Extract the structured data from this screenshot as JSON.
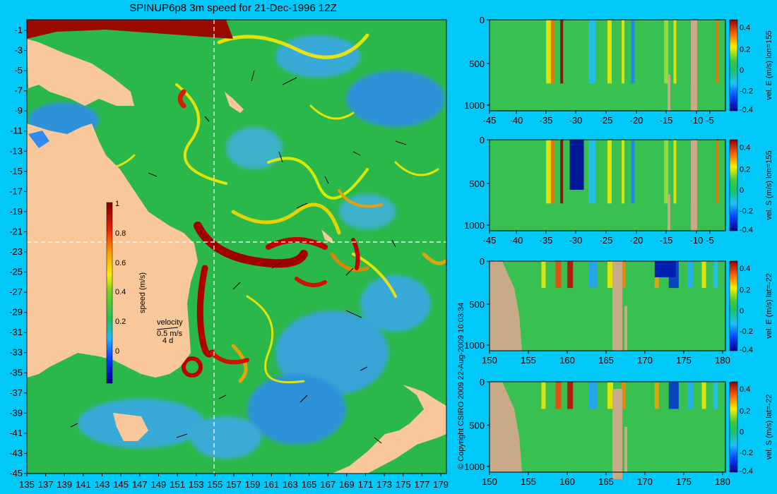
{
  "title": "SPINUP6p8 3m speed for 21-Dec-1996 12Z",
  "copyright": "© Copyright CSIRO 2009   22-Aug-2009 10:03:34",
  "colors": {
    "background": "#00c8f8",
    "land": "#f9c89a",
    "section_land": "#c8aa88",
    "ocean_base": "#2bb84a",
    "dashed_lines": "#ffffff"
  },
  "map": {
    "lon_ticks": [
      "135",
      "137",
      "139",
      "141",
      "143",
      "145",
      "147",
      "149",
      "151",
      "153",
      "155",
      "157",
      "159",
      "161",
      "163",
      "165",
      "167",
      "169",
      "171",
      "173",
      "175",
      "177",
      "179"
    ],
    "lat_ticks": [
      "-1",
      "-3",
      "-5",
      "-7",
      "-9",
      "-11",
      "-13",
      "-15",
      "-17",
      "-19",
      "-21",
      "-23",
      "-25",
      "-27",
      "-29",
      "-31",
      "-33",
      "-35",
      "-37",
      "-39",
      "-41",
      "-43",
      "-45"
    ],
    "colorbar": {
      "label": "speed (m/s)",
      "ticks": [
        "1",
        "0.8",
        "0.6",
        "0.4",
        "0.2",
        "0"
      ]
    },
    "velocity_legend": {
      "title": "velocity",
      "scale": "0.5 m/s",
      "duration": "4 d"
    },
    "section_lines": {
      "lon": "155",
      "lat": "-22"
    }
  },
  "sections": [
    {
      "id": "lon155-east",
      "label": "vel. E (m/s) lon=155",
      "x_ticks": [
        "-45",
        "-40",
        "-35",
        "-30",
        "-25",
        "-20",
        "-15",
        "-10",
        "-5"
      ],
      "y_ticks": [
        "0",
        "500",
        "1000"
      ],
      "cb_ticks": [
        "0.4",
        "0.2",
        "0",
        "-0.2",
        "-0.4"
      ]
    },
    {
      "id": "lon155-south",
      "label": "vel. S (m/s) lon=155",
      "x_ticks": [
        "-45",
        "-40",
        "-35",
        "-30",
        "-25",
        "-20",
        "-15",
        "-10",
        "-5"
      ],
      "y_ticks": [
        "0",
        "500",
        "1000"
      ],
      "cb_ticks": [
        "0.4",
        "0.2",
        "0",
        "-0.2",
        "-0.4"
      ]
    },
    {
      "id": "lat22-east",
      "label": "vel. E (m/s) lat=-22",
      "x_ticks": [
        "150",
        "155",
        "160",
        "165",
        "170",
        "175",
        "180"
      ],
      "y_ticks": [
        "0",
        "500",
        "1000"
      ],
      "cb_ticks": [
        "0.4",
        "0.2",
        "0",
        "-0.2",
        "-0.4"
      ]
    },
    {
      "id": "lat22-south",
      "label": "vel. S (m/s) lat=-22",
      "x_ticks": [
        "150",
        "155",
        "160",
        "165",
        "170",
        "175",
        "180"
      ],
      "y_ticks": [
        "0",
        "500",
        "1000"
      ],
      "cb_ticks": [
        "0.4",
        "0.2",
        "0",
        "-0.2",
        "-0.4"
      ]
    }
  ]
}
